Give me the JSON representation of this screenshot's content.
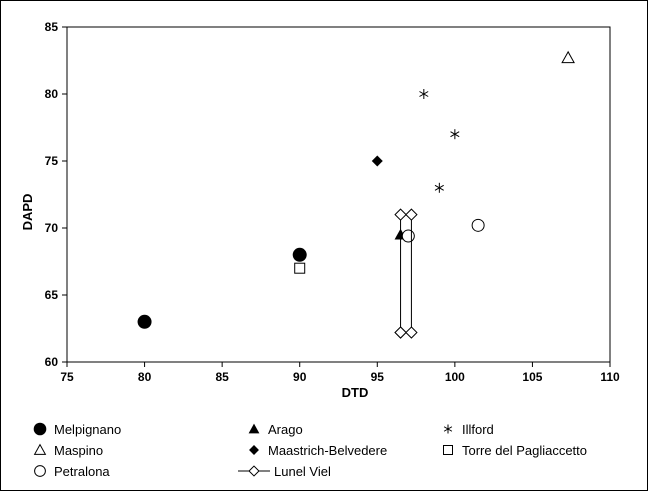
{
  "chart_data": {
    "type": "scatter",
    "xlabel": "DTD",
    "ylabel": "DAPD",
    "xlim": [
      75,
      110
    ],
    "ylim": [
      60,
      85
    ],
    "xticks": [
      75,
      80,
      85,
      90,
      95,
      100,
      105,
      110
    ],
    "yticks": [
      60,
      65,
      70,
      75,
      80,
      85
    ],
    "grid": false,
    "legend_placement": "bottom",
    "series": [
      {
        "name": "Melpignano",
        "marker": "circle-filled",
        "points": [
          [
            80,
            63
          ],
          [
            90,
            68
          ]
        ]
      },
      {
        "name": "Arago",
        "marker": "triangle-filled",
        "points": [
          [
            96.5,
            69.5
          ]
        ]
      },
      {
        "name": "Illford",
        "marker": "asterisk",
        "points": [
          [
            98,
            80
          ],
          [
            100,
            77
          ],
          [
            99,
            73
          ]
        ]
      },
      {
        "name": "Maspino",
        "marker": "triangle-open",
        "points": [
          [
            107.3,
            82.7
          ]
        ]
      },
      {
        "name": "Maastrich-Belvedere",
        "marker": "diamond-filled",
        "points": [
          [
            95,
            75
          ]
        ]
      },
      {
        "name": "Torre del Pagliaccetto",
        "marker": "square-open",
        "points": [
          [
            90,
            67
          ]
        ]
      },
      {
        "name": "Petralona",
        "marker": "circle-open",
        "points": [
          [
            97,
            69.4
          ],
          [
            101.5,
            70.2
          ]
        ]
      },
      {
        "name": "Lunel Viel",
        "marker": "diamond-open-line",
        "points": [
          [
            96.5,
            62.2
          ],
          [
            96.5,
            71
          ],
          [
            97.2,
            71
          ],
          [
            97.2,
            62.2
          ],
          [
            96.5,
            62.2
          ]
        ]
      }
    ]
  }
}
